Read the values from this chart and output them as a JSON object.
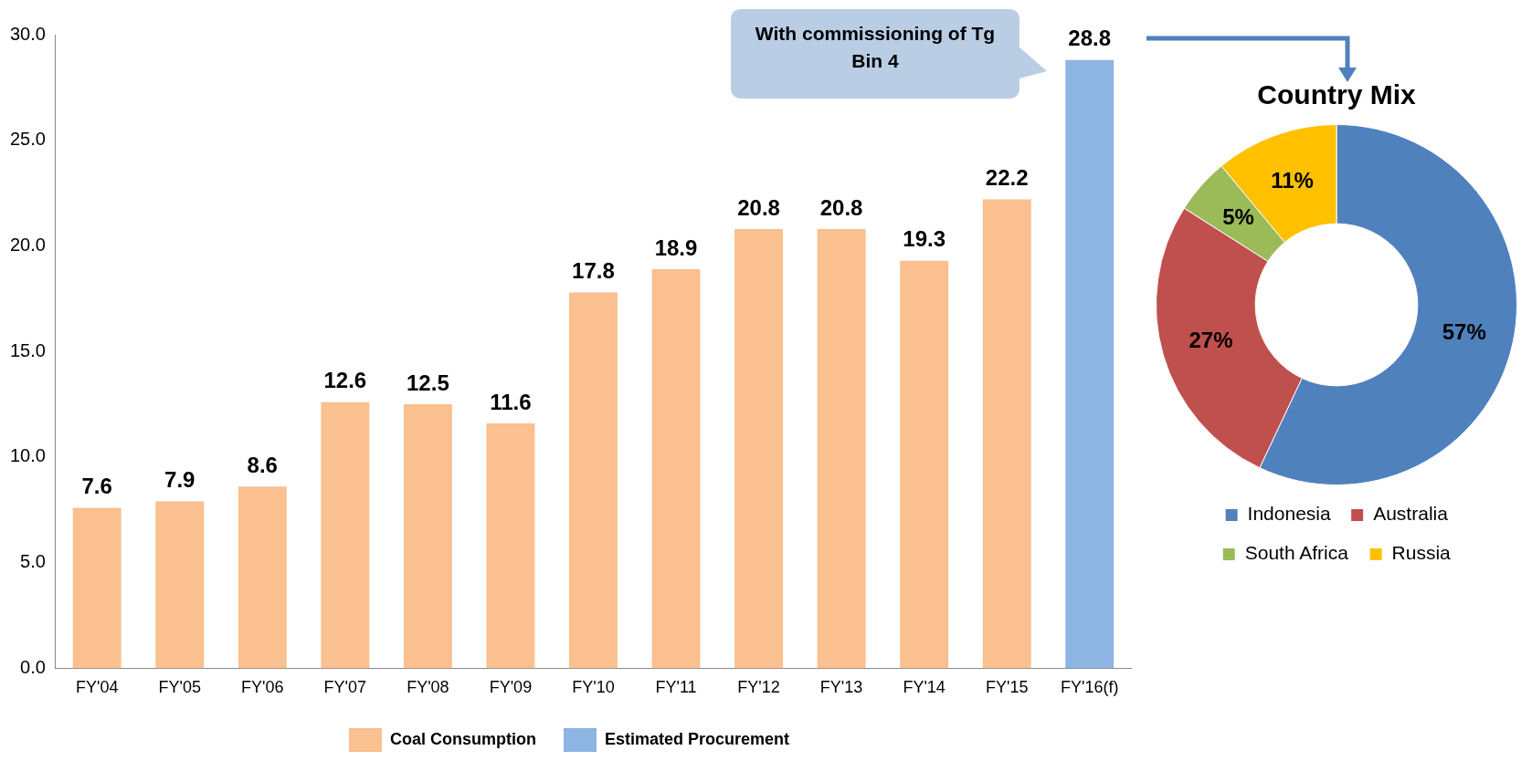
{
  "chart_data": [
    {
      "type": "bar",
      "categories": [
        "FY'04",
        "FY'05",
        "FY'06",
        "FY'07",
        "FY'08",
        "FY'09",
        "FY'10",
        "FY'11",
        "FY'12",
        "FY'13",
        "FY'14",
        "FY'15",
        "FY'16(f)"
      ],
      "series": [
        {
          "name": "Coal Consumption",
          "color": "#fac090",
          "values": [
            7.6,
            7.9,
            8.6,
            12.6,
            12.5,
            11.6,
            17.8,
            18.9,
            20.8,
            20.8,
            19.3,
            22.2,
            null
          ]
        },
        {
          "name": "Estimated Procurement",
          "color": "#8eb4e3",
          "values": [
            null,
            null,
            null,
            null,
            null,
            null,
            null,
            null,
            null,
            null,
            null,
            null,
            28.8
          ]
        }
      ],
      "ylim": [
        0,
        30
      ],
      "yticks": [
        {
          "value": 0,
          "label": "0.0"
        },
        {
          "value": 5,
          "label": "5.0"
        },
        {
          "value": 10,
          "label": "10.0"
        },
        {
          "value": 15,
          "label": "15.0"
        },
        {
          "value": 20,
          "label": "20.0"
        },
        {
          "value": 25,
          "label": "25.0"
        },
        {
          "value": 30,
          "label": "30.0"
        }
      ],
      "grid": false,
      "legend": "bottom",
      "data_labels": true,
      "annotations": [
        "With commissioning of Tg Bin 4"
      ]
    },
    {
      "type": "donut",
      "title": "Country Mix",
      "categories": [
        "Indonesia",
        "Australia",
        "South Africa",
        "Russia"
      ],
      "values": [
        57,
        27,
        5,
        11
      ],
      "colors": [
        "#4f81bd",
        "#c0504d",
        "#9bbb59",
        "#ffc000"
      ],
      "value_labels": [
        "57%",
        "27%",
        "5%",
        "11%"
      ],
      "legend": "bottom"
    }
  ]
}
